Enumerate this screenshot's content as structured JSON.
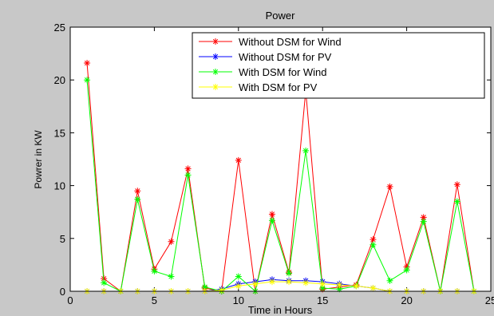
{
  "chart_data": {
    "type": "line",
    "title": "Power",
    "xlabel": "Time in Hours",
    "ylabel": "Powrer in KW",
    "xlim": [
      0,
      25
    ],
    "ylim": [
      0,
      25
    ],
    "xticks": [
      0,
      5,
      10,
      15,
      20,
      25
    ],
    "yticks": [
      0,
      5,
      10,
      15,
      20,
      25
    ],
    "grid": false,
    "legend_position": "top-right",
    "x": [
      1,
      2,
      3,
      4,
      5,
      6,
      7,
      8,
      9,
      10,
      11,
      12,
      13,
      14,
      15,
      16,
      17,
      18,
      19,
      20,
      21,
      22,
      23,
      24
    ],
    "series": [
      {
        "name": "Without DSM for Wind",
        "color": "#ff0000",
        "values": [
          21.6,
          1.2,
          0,
          9.5,
          2.1,
          4.7,
          11.6,
          0.3,
          0,
          12.4,
          0,
          7.3,
          1.8,
          19.0,
          0.2,
          0.4,
          0.6,
          4.9,
          9.9,
          2.3,
          7.0,
          0,
          10.1,
          0
        ]
      },
      {
        "name": "Without DSM for PV",
        "color": "#0000ff",
        "values": [
          0,
          0,
          0,
          0,
          0,
          0,
          0,
          0,
          0.2,
          0.7,
          0.9,
          1.1,
          1.0,
          1.0,
          0.9,
          0.7,
          0.5,
          0.3,
          0,
          0,
          0,
          0,
          0,
          0
        ]
      },
      {
        "name": "With DSM for Wind",
        "color": "#00ff00",
        "values": [
          20.0,
          0.8,
          0,
          8.7,
          1.9,
          1.4,
          11.0,
          0.4,
          0,
          1.4,
          0,
          6.7,
          1.7,
          13.3,
          0.3,
          0.2,
          0.5,
          4.4,
          1.0,
          2.0,
          6.6,
          0,
          8.5,
          0
        ]
      },
      {
        "name": "With DSM for PV",
        "color": "#ffff00",
        "values": [
          0,
          0,
          0,
          0,
          0,
          0,
          0,
          0,
          0.1,
          0.5,
          0.7,
          0.9,
          0.9,
          0.8,
          0.7,
          0.6,
          0.5,
          0.3,
          0,
          0,
          0,
          0,
          0,
          0
        ]
      }
    ]
  }
}
